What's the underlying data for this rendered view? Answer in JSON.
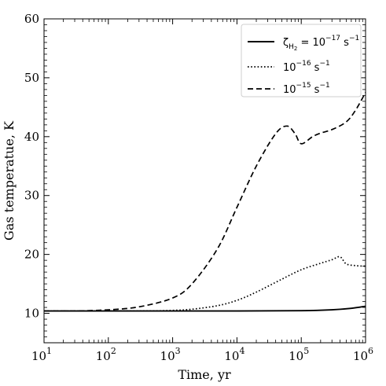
{
  "chart_data": {
    "type": "line",
    "title": "",
    "xlabel": "Time, yr",
    "ylabel": "Gas temperatue, K",
    "xscale": "log",
    "xlim": [
      10,
      1000000
    ],
    "ylim": [
      5,
      60
    ],
    "grid": false,
    "legend_position": "top-right",
    "x_ticks": [
      {
        "value": 10,
        "base": "10",
        "exp": "1"
      },
      {
        "value": 100,
        "base": "10",
        "exp": "2"
      },
      {
        "value": 1000,
        "base": "10",
        "exp": "3"
      },
      {
        "value": 10000,
        "base": "10",
        "exp": "4"
      },
      {
        "value": 100000,
        "base": "10",
        "exp": "5"
      },
      {
        "value": 1000000,
        "base": "10",
        "exp": "6"
      }
    ],
    "y_ticks": [
      10,
      20,
      30,
      40,
      50,
      60
    ],
    "series": [
      {
        "style": "solid",
        "legend": {
          "zeta": "ζ",
          "sub": "H",
          "subsub": "2",
          "eq": " = 10",
          "exp": "−17",
          "unit": " s",
          "unit_exp": "−1"
        },
        "x": [
          10,
          100,
          1000,
          10000,
          100000,
          300000,
          600000,
          1000000
        ],
        "y": [
          10.4,
          10.4,
          10.4,
          10.4,
          10.45,
          10.6,
          10.85,
          11.2
        ]
      },
      {
        "style": "dotted",
        "legend": {
          "base": "10",
          "exp": "−16",
          "unit": " s",
          "unit_exp": "−1"
        },
        "x": [
          10,
          300,
          1000,
          2000,
          5000,
          10000,
          20000,
          50000,
          100000,
          200000,
          300000,
          400000,
          500000,
          700000,
          1000000
        ],
        "y": [
          10.4,
          10.4,
          10.5,
          10.7,
          11.3,
          12.2,
          13.6,
          15.8,
          17.4,
          18.5,
          19.1,
          19.6,
          18.4,
          18.1,
          18.0
        ]
      },
      {
        "style": "dashed",
        "legend": {
          "base": "10",
          "exp": "−15",
          "unit": " s",
          "unit_exp": "−1"
        },
        "x": [
          10,
          30,
          100,
          300,
          1000,
          2000,
          5000,
          10000,
          20000,
          40000,
          60000,
          80000,
          100000,
          150000,
          200000,
          300000,
          500000,
          700000,
          1000000
        ],
        "y": [
          10.4,
          10.4,
          10.6,
          11.1,
          12.6,
          15.0,
          21.0,
          28.0,
          35.0,
          40.5,
          41.8,
          40.5,
          38.8,
          40.0,
          40.6,
          41.2,
          42.5,
          44.5,
          47.5
        ]
      }
    ]
  }
}
